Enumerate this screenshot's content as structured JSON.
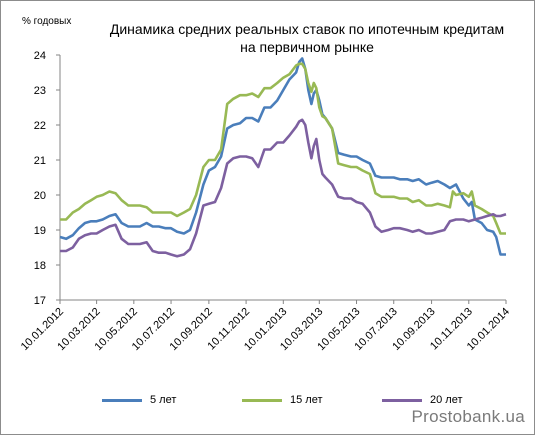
{
  "chart_data": {
    "type": "line",
    "title": "Динамика средних реальных ставок по ипотечным кредитам на первичном рынке",
    "title_line1": "Динамика средних реальных ставок по ипотечным кредитам",
    "title_line2": "на первичном рынке",
    "ylabel": "% годовых",
    "ylim": [
      17,
      24
    ],
    "yticks": [
      "17",
      "18",
      "19",
      "20",
      "21",
      "22",
      "23",
      "24"
    ],
    "x_start": "2012-01-10",
    "x_end": "2014-01-10",
    "xtick_labels": [
      "10.01.2012",
      "10.03.2012",
      "10.05.2012",
      "10.07.2012",
      "10.09.2012",
      "10.11.2012",
      "10.01.2013",
      "10.03.2013",
      "10.05.2013",
      "10.07.2013",
      "10.09.2013",
      "10.11.2013",
      "10.01.2014"
    ],
    "legend_position": "bottom",
    "series": [
      {
        "name": "5 лет",
        "color": "#4a7ebb",
        "points": [
          [
            "2012-01-10",
            18.8
          ],
          [
            "2012-01-20",
            18.75
          ],
          [
            "2012-01-31",
            18.85
          ],
          [
            "2012-02-10",
            19.05
          ],
          [
            "2012-02-20",
            19.2
          ],
          [
            "2012-03-01",
            19.25
          ],
          [
            "2012-03-10",
            19.25
          ],
          [
            "2012-03-20",
            19.3
          ],
          [
            "2012-03-31",
            19.4
          ],
          [
            "2012-04-10",
            19.45
          ],
          [
            "2012-04-20",
            19.2
          ],
          [
            "2012-05-01",
            19.1
          ],
          [
            "2012-05-10",
            19.1
          ],
          [
            "2012-05-20",
            19.1
          ],
          [
            "2012-05-31",
            19.2
          ],
          [
            "2012-06-10",
            19.1
          ],
          [
            "2012-06-20",
            19.1
          ],
          [
            "2012-07-01",
            19.05
          ],
          [
            "2012-07-10",
            19.05
          ],
          [
            "2012-07-20",
            18.95
          ],
          [
            "2012-07-31",
            18.9
          ],
          [
            "2012-08-10",
            19.0
          ],
          [
            "2012-08-20",
            19.5
          ],
          [
            "2012-09-01",
            20.3
          ],
          [
            "2012-09-10",
            20.7
          ],
          [
            "2012-09-20",
            20.8
          ],
          [
            "2012-09-30",
            21.1
          ],
          [
            "2012-10-10",
            21.9
          ],
          [
            "2012-10-20",
            22.0
          ],
          [
            "2012-10-31",
            22.05
          ],
          [
            "2012-11-10",
            22.2
          ],
          [
            "2012-11-20",
            22.2
          ],
          [
            "2012-11-30",
            22.1
          ],
          [
            "2012-12-10",
            22.5
          ],
          [
            "2012-12-20",
            22.5
          ],
          [
            "2012-12-31",
            22.7
          ],
          [
            "2013-01-10",
            23.0
          ],
          [
            "2013-01-20",
            23.3
          ],
          [
            "2013-01-31",
            23.5
          ],
          [
            "2013-02-05",
            23.8
          ],
          [
            "2013-02-10",
            23.9
          ],
          [
            "2013-02-15",
            23.6
          ],
          [
            "2013-02-20",
            23.0
          ],
          [
            "2013-02-25",
            22.6
          ],
          [
            "2013-03-01",
            22.9
          ],
          [
            "2013-03-05",
            23.0
          ],
          [
            "2013-03-10",
            22.7
          ],
          [
            "2013-03-15",
            22.3
          ],
          [
            "2013-03-20",
            22.2
          ],
          [
            "2013-03-31",
            21.9
          ],
          [
            "2013-04-10",
            21.2
          ],
          [
            "2013-04-20",
            21.15
          ],
          [
            "2013-05-01",
            21.1
          ],
          [
            "2013-05-10",
            21.1
          ],
          [
            "2013-05-20",
            21.0
          ],
          [
            "2013-06-01",
            20.9
          ],
          [
            "2013-06-10",
            20.55
          ],
          [
            "2013-06-20",
            20.5
          ],
          [
            "2013-07-01",
            20.5
          ],
          [
            "2013-07-10",
            20.5
          ],
          [
            "2013-07-20",
            20.45
          ],
          [
            "2013-08-01",
            20.45
          ],
          [
            "2013-08-10",
            20.4
          ],
          [
            "2013-08-20",
            20.45
          ],
          [
            "2013-09-01",
            20.3
          ],
          [
            "2013-09-10",
            20.35
          ],
          [
            "2013-09-20",
            20.4
          ],
          [
            "2013-10-01",
            20.3
          ],
          [
            "2013-10-10",
            20.2
          ],
          [
            "2013-10-20",
            20.3
          ],
          [
            "2013-11-01",
            19.9
          ],
          [
            "2013-11-10",
            19.7
          ],
          [
            "2013-11-15",
            19.8
          ],
          [
            "2013-11-20",
            19.3
          ],
          [
            "2013-12-01",
            19.2
          ],
          [
            "2013-12-10",
            19.0
          ],
          [
            "2013-12-20",
            18.95
          ],
          [
            "2013-12-25",
            18.8
          ],
          [
            "2014-01-01",
            18.3
          ],
          [
            "2014-01-10",
            18.3
          ]
        ]
      },
      {
        "name": "15 лет",
        "color": "#98b954",
        "points": [
          [
            "2012-01-10",
            19.3
          ],
          [
            "2012-01-20",
            19.3
          ],
          [
            "2012-01-31",
            19.5
          ],
          [
            "2012-02-10",
            19.6
          ],
          [
            "2012-02-20",
            19.75
          ],
          [
            "2012-03-01",
            19.85
          ],
          [
            "2012-03-10",
            19.95
          ],
          [
            "2012-03-20",
            20.0
          ],
          [
            "2012-03-31",
            20.1
          ],
          [
            "2012-04-10",
            20.05
          ],
          [
            "2012-04-20",
            19.85
          ],
          [
            "2012-05-01",
            19.7
          ],
          [
            "2012-05-10",
            19.7
          ],
          [
            "2012-05-20",
            19.7
          ],
          [
            "2012-05-31",
            19.65
          ],
          [
            "2012-06-10",
            19.5
          ],
          [
            "2012-06-20",
            19.5
          ],
          [
            "2012-07-01",
            19.5
          ],
          [
            "2012-07-10",
            19.5
          ],
          [
            "2012-07-20",
            19.4
          ],
          [
            "2012-07-31",
            19.5
          ],
          [
            "2012-08-10",
            19.6
          ],
          [
            "2012-08-20",
            20.0
          ],
          [
            "2012-09-01",
            20.8
          ],
          [
            "2012-09-10",
            21.0
          ],
          [
            "2012-09-20",
            21.0
          ],
          [
            "2012-09-30",
            21.3
          ],
          [
            "2012-10-10",
            22.6
          ],
          [
            "2012-10-20",
            22.75
          ],
          [
            "2012-10-31",
            22.85
          ],
          [
            "2012-11-10",
            22.85
          ],
          [
            "2012-11-20",
            22.9
          ],
          [
            "2012-11-30",
            22.8
          ],
          [
            "2012-12-10",
            23.05
          ],
          [
            "2012-12-20",
            23.05
          ],
          [
            "2012-12-31",
            23.2
          ],
          [
            "2013-01-10",
            23.35
          ],
          [
            "2013-01-20",
            23.45
          ],
          [
            "2013-01-31",
            23.7
          ],
          [
            "2013-02-05",
            23.75
          ],
          [
            "2013-02-10",
            23.75
          ],
          [
            "2013-02-15",
            23.6
          ],
          [
            "2013-02-20",
            23.2
          ],
          [
            "2013-02-25",
            22.95
          ],
          [
            "2013-03-01",
            23.2
          ],
          [
            "2013-03-05",
            23.05
          ],
          [
            "2013-03-10",
            22.5
          ],
          [
            "2013-03-15",
            22.25
          ],
          [
            "2013-03-20",
            22.2
          ],
          [
            "2013-03-31",
            21.9
          ],
          [
            "2013-04-10",
            20.9
          ],
          [
            "2013-04-20",
            20.85
          ],
          [
            "2013-05-01",
            20.8
          ],
          [
            "2013-05-10",
            20.8
          ],
          [
            "2013-05-20",
            20.7
          ],
          [
            "2013-06-01",
            20.6
          ],
          [
            "2013-06-10",
            20.05
          ],
          [
            "2013-06-20",
            19.95
          ],
          [
            "2013-07-01",
            19.95
          ],
          [
            "2013-07-10",
            19.95
          ],
          [
            "2013-07-20",
            19.9
          ],
          [
            "2013-08-01",
            19.9
          ],
          [
            "2013-08-10",
            19.8
          ],
          [
            "2013-08-20",
            19.85
          ],
          [
            "2013-09-01",
            19.7
          ],
          [
            "2013-09-10",
            19.7
          ],
          [
            "2013-09-20",
            19.75
          ],
          [
            "2013-10-01",
            19.7
          ],
          [
            "2013-10-10",
            19.65
          ],
          [
            "2013-10-15",
            20.1
          ],
          [
            "2013-10-20",
            20.0
          ],
          [
            "2013-11-01",
            20.05
          ],
          [
            "2013-11-10",
            19.95
          ],
          [
            "2013-11-15",
            20.1
          ],
          [
            "2013-11-20",
            19.7
          ],
          [
            "2013-12-01",
            19.6
          ],
          [
            "2013-12-10",
            19.5
          ],
          [
            "2013-12-20",
            19.4
          ],
          [
            "2013-12-25",
            19.2
          ],
          [
            "2014-01-01",
            18.9
          ],
          [
            "2014-01-10",
            18.9
          ]
        ]
      },
      {
        "name": "20 лет",
        "color": "#7d60a0",
        "points": [
          [
            "2012-01-10",
            18.4
          ],
          [
            "2012-01-20",
            18.4
          ],
          [
            "2012-01-31",
            18.5
          ],
          [
            "2012-02-10",
            18.75
          ],
          [
            "2012-02-20",
            18.85
          ],
          [
            "2012-03-01",
            18.9
          ],
          [
            "2012-03-10",
            18.9
          ],
          [
            "2012-03-20",
            19.0
          ],
          [
            "2012-03-31",
            19.1
          ],
          [
            "2012-04-10",
            19.15
          ],
          [
            "2012-04-20",
            18.75
          ],
          [
            "2012-05-01",
            18.6
          ],
          [
            "2012-05-10",
            18.6
          ],
          [
            "2012-05-20",
            18.6
          ],
          [
            "2012-05-31",
            18.65
          ],
          [
            "2012-06-10",
            18.4
          ],
          [
            "2012-06-20",
            18.35
          ],
          [
            "2012-07-01",
            18.35
          ],
          [
            "2012-07-10",
            18.3
          ],
          [
            "2012-07-20",
            18.25
          ],
          [
            "2012-07-31",
            18.3
          ],
          [
            "2012-08-10",
            18.45
          ],
          [
            "2012-08-20",
            18.9
          ],
          [
            "2012-09-01",
            19.7
          ],
          [
            "2012-09-10",
            19.75
          ],
          [
            "2012-09-20",
            19.8
          ],
          [
            "2012-09-30",
            20.2
          ],
          [
            "2012-10-10",
            20.9
          ],
          [
            "2012-10-20",
            21.05
          ],
          [
            "2012-10-31",
            21.1
          ],
          [
            "2012-11-10",
            21.1
          ],
          [
            "2012-11-20",
            21.05
          ],
          [
            "2012-11-30",
            20.8
          ],
          [
            "2012-12-10",
            21.3
          ],
          [
            "2012-12-20",
            21.3
          ],
          [
            "2012-12-31",
            21.5
          ],
          [
            "2013-01-10",
            21.5
          ],
          [
            "2013-01-20",
            21.7
          ],
          [
            "2013-01-31",
            21.95
          ],
          [
            "2013-02-05",
            22.1
          ],
          [
            "2013-02-10",
            22.15
          ],
          [
            "2013-02-15",
            22.0
          ],
          [
            "2013-02-20",
            21.5
          ],
          [
            "2013-02-25",
            21.05
          ],
          [
            "2013-03-01",
            21.4
          ],
          [
            "2013-03-05",
            21.6
          ],
          [
            "2013-03-10",
            21.0
          ],
          [
            "2013-03-15",
            20.6
          ],
          [
            "2013-03-20",
            20.5
          ],
          [
            "2013-03-31",
            20.3
          ],
          [
            "2013-04-10",
            19.95
          ],
          [
            "2013-04-20",
            19.9
          ],
          [
            "2013-05-01",
            19.9
          ],
          [
            "2013-05-10",
            19.8
          ],
          [
            "2013-05-20",
            19.75
          ],
          [
            "2013-06-01",
            19.5
          ],
          [
            "2013-06-10",
            19.1
          ],
          [
            "2013-06-20",
            18.95
          ],
          [
            "2013-07-01",
            19.0
          ],
          [
            "2013-07-10",
            19.05
          ],
          [
            "2013-07-20",
            19.05
          ],
          [
            "2013-08-01",
            19.0
          ],
          [
            "2013-08-10",
            18.95
          ],
          [
            "2013-08-20",
            19.0
          ],
          [
            "2013-09-01",
            18.9
          ],
          [
            "2013-09-10",
            18.9
          ],
          [
            "2013-09-20",
            18.95
          ],
          [
            "2013-10-01",
            19.0
          ],
          [
            "2013-10-10",
            19.25
          ],
          [
            "2013-10-20",
            19.3
          ],
          [
            "2013-11-01",
            19.3
          ],
          [
            "2013-11-10",
            19.25
          ],
          [
            "2013-11-20",
            19.3
          ],
          [
            "2013-12-01",
            19.35
          ],
          [
            "2013-12-10",
            19.4
          ],
          [
            "2013-12-20",
            19.45
          ],
          [
            "2013-12-25",
            19.4
          ],
          [
            "2014-01-01",
            19.4
          ],
          [
            "2014-01-10",
            19.45
          ]
        ]
      }
    ]
  },
  "watermark": "Prostobank.ua"
}
